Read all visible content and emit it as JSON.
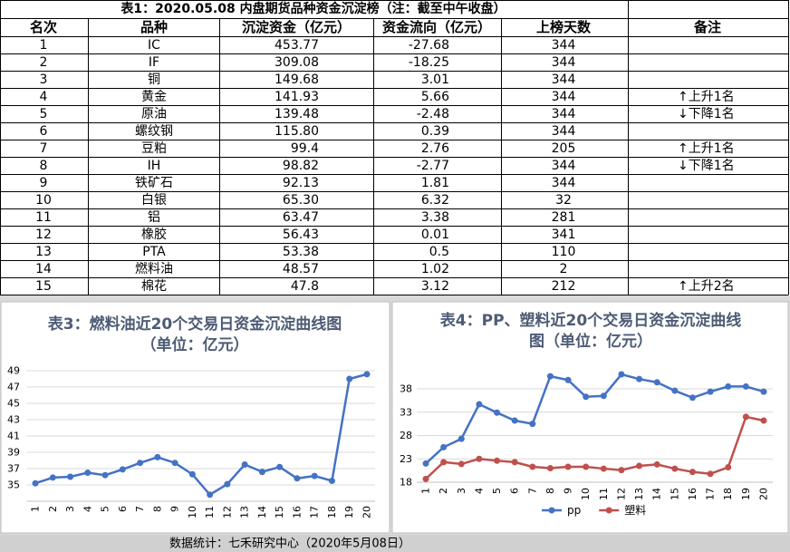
{
  "table": {
    "title": "表1：2020.05.08 内盘期货品种资金沉淀榜（注：截至中午收盘）",
    "header": [
      "名次",
      "品种",
      "沉淀资金（亿元）",
      "资金流向（亿元）",
      "上榜天数",
      "备注"
    ],
    "rows": [
      [
        "1",
        "IC",
        "453.77",
        "-27.68",
        "344"
      ],
      [
        "2",
        "IF",
        "309.08",
        "-18.25",
        "344"
      ],
      [
        "3",
        "铜",
        "149.68",
        "3.01",
        "344"
      ],
      [
        "4",
        "黄金",
        "141.93",
        "5.66",
        "344",
        "↑上升1名"
      ],
      [
        "5",
        "原油",
        "139.48",
        "-2.48",
        "344",
        "↓下降1名"
      ],
      [
        "6",
        "螺纹钢",
        "115.80",
        "0.39",
        "344"
      ],
      [
        "7",
        "豆粕",
        "99.4",
        "2.76",
        "205",
        "↑上升1名"
      ],
      [
        "8",
        "IH",
        "98.82",
        "-2.77",
        "344",
        "↓下降1名"
      ],
      [
        "9",
        "铁矿石",
        "92.13",
        "1.81",
        "344"
      ],
      [
        "10",
        "白银",
        "65.30",
        "6.32",
        "32"
      ],
      [
        "11",
        "铝",
        "63.47",
        "3.38",
        "281"
      ],
      [
        "12",
        "橡胶",
        "56.43",
        "0.01",
        "341"
      ],
      [
        "13",
        "PTA",
        "53.38",
        "0.5",
        "110"
      ],
      [
        "14",
        "燃料油",
        "48.57",
        "1.02",
        "2"
      ],
      [
        "15",
        "棉花",
        "47.8",
        "3.12",
        "212",
        "↑上升2名"
      ]
    ]
  },
  "chart_data": [
    {
      "type": "line",
      "title": "表3：燃料油近20个交易日资金沉淀曲线图（单位：亿元）",
      "categories": [
        "1",
        "2",
        "3",
        "4",
        "5",
        "6",
        "7",
        "8",
        "9",
        "10",
        "11",
        "12",
        "13",
        "14",
        "15",
        "16",
        "17",
        "18",
        "19",
        "20"
      ],
      "values": [
        35.2,
        35.9,
        36.0,
        36.5,
        36.2,
        36.9,
        37.7,
        38.4,
        37.7,
        36.3,
        33.8,
        35.1,
        37.5,
        36.6,
        37.2,
        35.8,
        36.1,
        35.5,
        48.0,
        48.57
      ],
      "color": "#4472c4",
      "ylim": [
        33,
        49
      ],
      "yticks": [
        35,
        37,
        39,
        41,
        43,
        45,
        47,
        49
      ],
      "grid": true
    },
    {
      "type": "line",
      "title": "表4：PP、塑料近20个交易日资金沉淀曲线图（单位：亿元）",
      "categories": [
        "1",
        "2",
        "3",
        "4",
        "5",
        "6",
        "7",
        "8",
        "9",
        "10",
        "11",
        "12",
        "13",
        "14",
        "15",
        "16",
        "17",
        "18",
        "19",
        "20"
      ],
      "series": [
        {
          "name": "pp",
          "color": "#4472c4",
          "values": [
            22.0,
            25.5,
            27.3,
            34.7,
            32.9,
            31.2,
            30.5,
            40.7,
            39.9,
            36.3,
            36.5,
            41.1,
            40.1,
            39.4,
            37.6,
            36.1,
            37.4,
            38.5,
            38.5,
            37.4
          ]
        },
        {
          "name": "塑料",
          "color": "#c0504d",
          "values": [
            18.7,
            22.3,
            21.9,
            23.0,
            22.6,
            22.3,
            21.3,
            21.0,
            21.3,
            21.3,
            20.9,
            20.6,
            21.5,
            21.8,
            20.9,
            20.2,
            19.8,
            21.2,
            32.0,
            31.2
          ]
        }
      ],
      "ylim": [
        18,
        42
      ],
      "yticks": [
        18,
        23,
        28,
        33,
        38
      ],
      "grid": true,
      "legend": "bottom"
    }
  ],
  "footer": "数据统计：七禾研究中心（2020年5月08日）"
}
